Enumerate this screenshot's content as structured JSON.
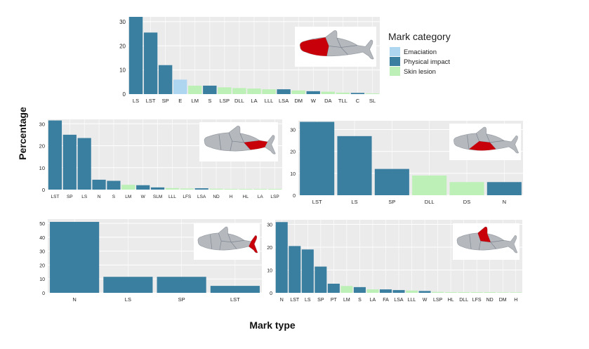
{
  "figure": {
    "y_axis_title": "Percentage",
    "x_axis_title": "Mark type"
  },
  "legend": {
    "title": "Mark category",
    "items": [
      {
        "label": "Emaciation",
        "color": "#aed6f1"
      },
      {
        "label": "Physical impact",
        "color": "#3a7fa0"
      },
      {
        "label": "Skin lesion",
        "color": "#bdf0b6"
      }
    ]
  },
  "colors": {
    "panel_bg": "#ebebeb",
    "grid": "#ffffff",
    "dolphin_body": "#b5b8bd",
    "dolphin_highlight": "#c8000a",
    "Emaciation": "#aed6f1",
    "Physical impact": "#3a7fa0",
    "Skin lesion": "#bdf0b6"
  },
  "chart_data": [
    {
      "type": "bar",
      "panel": "whole body (top)",
      "icon_region": "head",
      "categories": [
        "LS",
        "LST",
        "SP",
        "E",
        "LM",
        "S",
        "LSP",
        "DLL",
        "LA",
        "LLL",
        "LSA",
        "DM",
        "W",
        "DA",
        "TLL",
        "C",
        "SL"
      ],
      "series_category": [
        "Physical impact",
        "Physical impact",
        "Physical impact",
        "Emaciation",
        "Skin lesion",
        "Physical impact",
        "Skin lesion",
        "Skin lesion",
        "Skin lesion",
        "Skin lesion",
        "Physical impact",
        "Skin lesion",
        "Physical impact",
        "Skin lesion",
        "Skin lesion",
        "Physical impact",
        "Skin lesion"
      ],
      "values": [
        32,
        25.5,
        12,
        6,
        3.5,
        3.5,
        2.8,
        2.5,
        2.3,
        2,
        2,
        1.5,
        1.2,
        1,
        0.6,
        0.5,
        0.3
      ],
      "ylim": [
        0,
        32
      ],
      "yticks": [
        0,
        10,
        20,
        30
      ]
    },
    {
      "type": "bar",
      "panel": "middle left",
      "icon_region": "tail-stock",
      "categories": [
        "LST",
        "SP",
        "LS",
        "N",
        "S",
        "LM",
        "W",
        "SLM",
        "LLL",
        "LFS",
        "LSA",
        "ND",
        "H",
        "HL",
        "LA",
        "LSP"
      ],
      "series_category": [
        "Physical impact",
        "Physical impact",
        "Physical impact",
        "Physical impact",
        "Physical impact",
        "Skin lesion",
        "Physical impact",
        "Physical impact",
        "Skin lesion",
        "Skin lesion",
        "Physical impact",
        "Skin lesion",
        "Skin lesion",
        "Skin lesion",
        "Skin lesion",
        "Skin lesion"
      ],
      "values": [
        31.5,
        25,
        23.5,
        4.5,
        4,
        2.2,
        2,
        1,
        0.7,
        0.5,
        0.6,
        0.4,
        0.3,
        0.3,
        0.3,
        0.3
      ],
      "ylim": [
        0,
        32
      ],
      "yticks": [
        0,
        10,
        20,
        30
      ]
    },
    {
      "type": "bar",
      "panel": "middle right",
      "icon_region": "belly",
      "categories": [
        "LST",
        "LS",
        "SP",
        "DLL",
        "DS",
        "N"
      ],
      "series_category": [
        "Physical impact",
        "Physical impact",
        "Physical impact",
        "Skin lesion",
        "Skin lesion",
        "Physical impact"
      ],
      "values": [
        33.5,
        27,
        12,
        9,
        6,
        6
      ],
      "ylim": [
        0,
        34
      ],
      "yticks": [
        0,
        10,
        20,
        30
      ]
    },
    {
      "type": "bar",
      "panel": "bottom left",
      "icon_region": "fluke",
      "categories": [
        "N",
        "LS",
        "SP",
        "LST"
      ],
      "series_category": [
        "Physical impact",
        "Physical impact",
        "Physical impact",
        "Physical impact"
      ],
      "values": [
        51,
        11.5,
        11.5,
        5
      ],
      "ylim": [
        0,
        53
      ],
      "yticks": [
        0,
        10,
        20,
        30,
        40,
        50
      ]
    },
    {
      "type": "bar",
      "panel": "bottom right",
      "icon_region": "dorsal fin",
      "categories": [
        "N",
        "LST",
        "LS",
        "SP",
        "PT",
        "LM",
        "S",
        "LA",
        "FA",
        "LSA",
        "LLL",
        "W",
        "LSP",
        "HL",
        "DLL",
        "LFS",
        "ND",
        "DM",
        "H"
      ],
      "series_category": [
        "Physical impact",
        "Physical impact",
        "Physical impact",
        "Physical impact",
        "Physical impact",
        "Skin lesion",
        "Physical impact",
        "Skin lesion",
        "Physical impact",
        "Physical impact",
        "Skin lesion",
        "Physical impact",
        "Skin lesion",
        "Skin lesion",
        "Skin lesion",
        "Skin lesion",
        "Skin lesion",
        "Skin lesion",
        "Skin lesion"
      ],
      "values": [
        31,
        20.5,
        19,
        11.5,
        4,
        3,
        2.5,
        1.5,
        1.5,
        1.2,
        1,
        0.8,
        0.4,
        0.3,
        0.3,
        0.3,
        0.3,
        0.2,
        0.2
      ],
      "ylim": [
        0,
        32
      ],
      "yticks": [
        0,
        10,
        20,
        30
      ]
    }
  ]
}
